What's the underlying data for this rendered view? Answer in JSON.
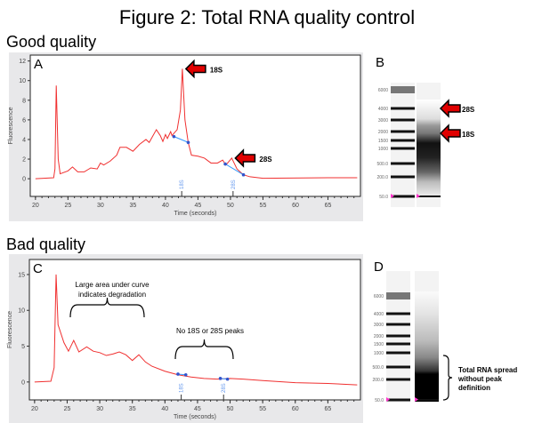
{
  "title": "Figure 2: Total RNA quality control",
  "good_label": "Good quality",
  "bad_label": "Bad quality",
  "colors": {
    "trace": "#f03030",
    "marker_line": "#3399ff",
    "arrow": "#e00000",
    "panel_bg": "#e8e8ea"
  },
  "chart_data": [
    {
      "type": "line",
      "panel": "A",
      "xlabel": "Time (seconds)",
      "ylabel": "Fluorescence",
      "xlim": [
        19.2,
        70
      ],
      "ylim": [
        -1.8,
        12.6
      ],
      "xticks": [
        20,
        25,
        30,
        35,
        40,
        45,
        50,
        55,
        60,
        65
      ],
      "yticks": [
        0,
        2,
        4,
        6,
        8,
        10,
        12
      ],
      "x": [
        20,
        22.8,
        23,
        23.2,
        23.5,
        23.8,
        25,
        25.7,
        26.5,
        27.5,
        28.5,
        29.5,
        30,
        30.5,
        31.5,
        32.5,
        33,
        34,
        35,
        36,
        37,
        37.5,
        38.6,
        39.2,
        39.6,
        40,
        40.3,
        40.8,
        41,
        41.8,
        42.3,
        42.6,
        43,
        43.5,
        44,
        45,
        46,
        47,
        48,
        48.8,
        49.3,
        50.2,
        51,
        52,
        53,
        55,
        65,
        69.5
      ],
      "y": [
        0,
        0.1,
        1,
        9.5,
        2,
        0.5,
        0.8,
        1.2,
        0.7,
        0.7,
        1.1,
        1,
        1.6,
        1.4,
        1.8,
        2.4,
        3.2,
        3.2,
        2.8,
        3.5,
        4,
        3.7,
        5,
        4.4,
        3.8,
        4.5,
        4.1,
        4.8,
        4.4,
        5,
        7,
        11.2,
        6,
        3.7,
        2.4,
        2.3,
        2.1,
        1.6,
        1.6,
        1.9,
        1.4,
        2.1,
        1,
        0.4,
        0.2,
        0.05,
        0.1,
        0.1
      ],
      "peak_markers": [
        {
          "name": "18S",
          "x": 42.5,
          "from": [
            41.3,
            4.3
          ],
          "to": [
            43.5,
            3.7
          ]
        },
        {
          "name": "28S",
          "x": 50.4,
          "from": [
            49.2,
            1.5
          ],
          "to": [
            52,
            0.4
          ]
        }
      ],
      "annotations": [
        {
          "text": "18S",
          "x": 42.6,
          "y": 11.2
        },
        {
          "text": "28S",
          "x": 50.2,
          "y": 2.1
        }
      ]
    },
    {
      "type": "line",
      "panel": "C",
      "xlabel": "Time (seconds)",
      "ylabel": "Fluorescence",
      "xlim": [
        19.2,
        70
      ],
      "ylim": [
        -2.5,
        17.1
      ],
      "xticks": [
        20,
        25,
        30,
        35,
        40,
        45,
        50,
        55,
        60,
        65
      ],
      "yticks": [
        0,
        5,
        10,
        15
      ],
      "x": [
        20,
        22.5,
        23,
        23.3,
        23.6,
        24.5,
        25.2,
        26,
        26.8,
        28,
        29,
        30,
        31,
        32,
        33,
        34,
        35,
        36,
        37,
        38,
        40,
        42,
        44,
        46,
        48,
        50,
        52,
        55,
        60,
        65,
        69.5
      ],
      "y": [
        0,
        0.1,
        2,
        15,
        8,
        5.5,
        4.3,
        5.8,
        4.2,
        4.9,
        4.3,
        4.1,
        3.7,
        3.9,
        4.2,
        3.8,
        3,
        3.8,
        2.8,
        2.2,
        1.5,
        1,
        0.7,
        0.5,
        0.4,
        0.5,
        0.4,
        0.2,
        -0.1,
        -0.2,
        -0.4
      ],
      "peak_markers": [
        {
          "name": "18S",
          "x": 42.5,
          "from": [
            42,
            1.1
          ],
          "to": [
            43.2,
            1
          ]
        },
        {
          "name": "28S",
          "x": 49,
          "from": [
            48.5,
            0.5
          ],
          "to": [
            49.6,
            0.4
          ]
        }
      ],
      "annotations": [
        {
          "text": "Large area under curve",
          "text2": "indicates degradation"
        },
        {
          "text": "No 18S or 28S peaks"
        }
      ]
    }
  ],
  "gel_B": {
    "label": "B",
    "ladder": [
      "6000",
      "4000",
      "3000",
      "2000",
      "1500",
      "1000",
      "500.0",
      "200.0",
      "50.0"
    ],
    "arrows": [
      "28S",
      "18S"
    ]
  },
  "gel_D": {
    "label": "D",
    "ladder": [
      "6000",
      "4000",
      "3000",
      "2000",
      "1500",
      "1000",
      "500.0",
      "200.0",
      "50.0"
    ],
    "note": [
      "Total RNA spread",
      "without peak",
      "definition"
    ]
  },
  "panel_labels": {
    "a": "A",
    "c": "C"
  }
}
